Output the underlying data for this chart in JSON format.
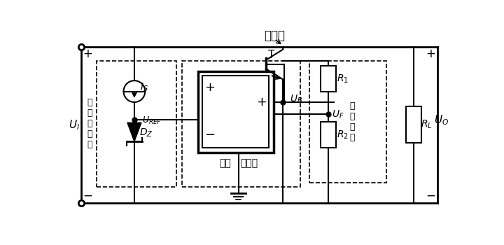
{
  "bg_color": "#ffffff",
  "line_color": "#000000",
  "fig_width": 7.2,
  "fig_height": 3.5,
  "dpi": 100,
  "title_text": "调整管",
  "label_jizhunyayuan": "基\n准\n电\n压\n源",
  "label_T": "T",
  "label_IS": "$I_S$",
  "label_UREF": "$U_{REF}$",
  "label_DZ": "$D_Z$",
  "label_UB": "$U_B$",
  "label_bijiao": "比较",
  "label_fangdaqi": "放大器",
  "label_quyangwangluo": "取\n样\n网\n络",
  "label_R1": "$R_1$",
  "label_R2": "$R_2$",
  "label_UF": "$U_F$",
  "label_RL": "$R_L$",
  "label_UO": "$U_O$",
  "label_UI": "$U_I$",
  "label_plus": "+",
  "label_minus": "−"
}
